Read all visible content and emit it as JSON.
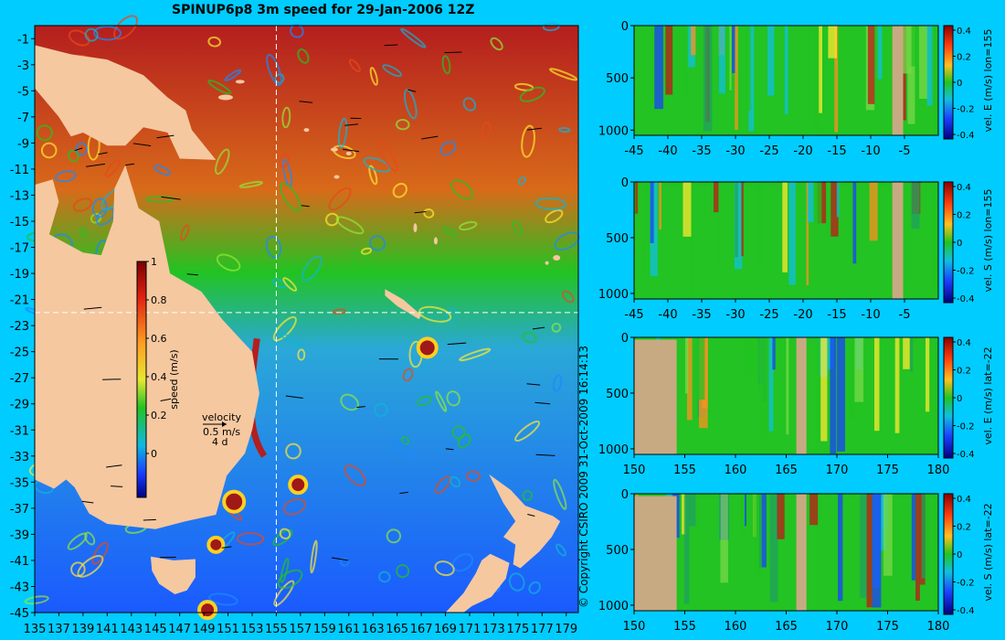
{
  "title": "SPINUP6p8 3m speed for 29-Jan-2006 12Z",
  "copyright": "© Copyright CSIRO 2009   31-Oct-2009 16:14:13",
  "colors": {
    "background": "#00ccff",
    "land": "#f5c8a0",
    "section_land": "#c8aa82",
    "ocean_low": "#1a5aff",
    "ocean_mid": "#22c322",
    "ocean_high": "#b41e1e"
  },
  "map": {
    "xticks": [
      "135",
      "137",
      "139",
      "141",
      "143",
      "145",
      "147",
      "149",
      "151",
      "153",
      "155",
      "157",
      "159",
      "161",
      "163",
      "165",
      "167",
      "169",
      "171",
      "173",
      "175",
      "177",
      "179"
    ],
    "yticks": [
      "-1",
      "-3",
      "-5",
      "-7",
      "-9",
      "-11",
      "-13",
      "-15",
      "-17",
      "-19",
      "-21",
      "-23",
      "-25",
      "-27",
      "-29",
      "-31",
      "-33",
      "-35",
      "-37",
      "-39",
      "-41",
      "-43",
      "-45"
    ],
    "xlim": [
      135,
      180
    ],
    "ylim": [
      -45,
      0
    ],
    "section_lon": 155,
    "section_lat": -22,
    "colorbar": {
      "label": "speed (m/s)",
      "ticks": [
        "1",
        "0.8",
        "0.6",
        "0.4",
        "0.2",
        "0"
      ],
      "range": [
        0,
        1
      ]
    },
    "velocity_legend": {
      "label": "velocity",
      "speed": "0.5 m/s",
      "time": "4 d"
    }
  },
  "chart_data": [
    {
      "type": "heatmap",
      "title": "SPINUP6p8 3m speed for 29-Jan-2006 12Z",
      "colorbar_label": "speed (m/s)",
      "xlim": [
        135,
        180
      ],
      "ylim": [
        -45,
        0
      ],
      "vmin": 0,
      "vmax": 1
    },
    {
      "type": "heatmap",
      "colorbar_label": "vel. E (m/s) lon=155",
      "xticks": [
        "-45",
        "-40",
        "-35",
        "-30",
        "-25",
        "-20",
        "-15",
        "-10",
        "-5"
      ],
      "yticks": [
        "0",
        "500",
        "1000"
      ],
      "vmin": -0.4,
      "vmax": 0.4
    },
    {
      "type": "heatmap",
      "colorbar_label": "vel. S (m/s) lon=155",
      "xticks": [
        "-45",
        "-40",
        "-35",
        "-30",
        "-25",
        "-20",
        "-15",
        "-10",
        "-5"
      ],
      "yticks": [
        "0",
        "500",
        "1000"
      ],
      "vmin": -0.4,
      "vmax": 0.4
    },
    {
      "type": "heatmap",
      "colorbar_label": "vel. E (m/s) lat=-22",
      "xticks": [
        "150",
        "155",
        "160",
        "165",
        "170",
        "175",
        "180"
      ],
      "yticks": [
        "0",
        "500",
        "1000"
      ],
      "vmin": -0.4,
      "vmax": 0.4
    },
    {
      "type": "heatmap",
      "colorbar_label": "vel. S (m/s) lat=-22",
      "xticks": [
        "150",
        "155",
        "160",
        "165",
        "170",
        "175",
        "180"
      ],
      "yticks": [
        "0",
        "500",
        "1000"
      ],
      "vmin": -0.4,
      "vmax": 0.4
    }
  ],
  "panel_cbar_ticks": [
    "0.4",
    "0.2",
    "0",
    "-0.2",
    "-0.4"
  ]
}
